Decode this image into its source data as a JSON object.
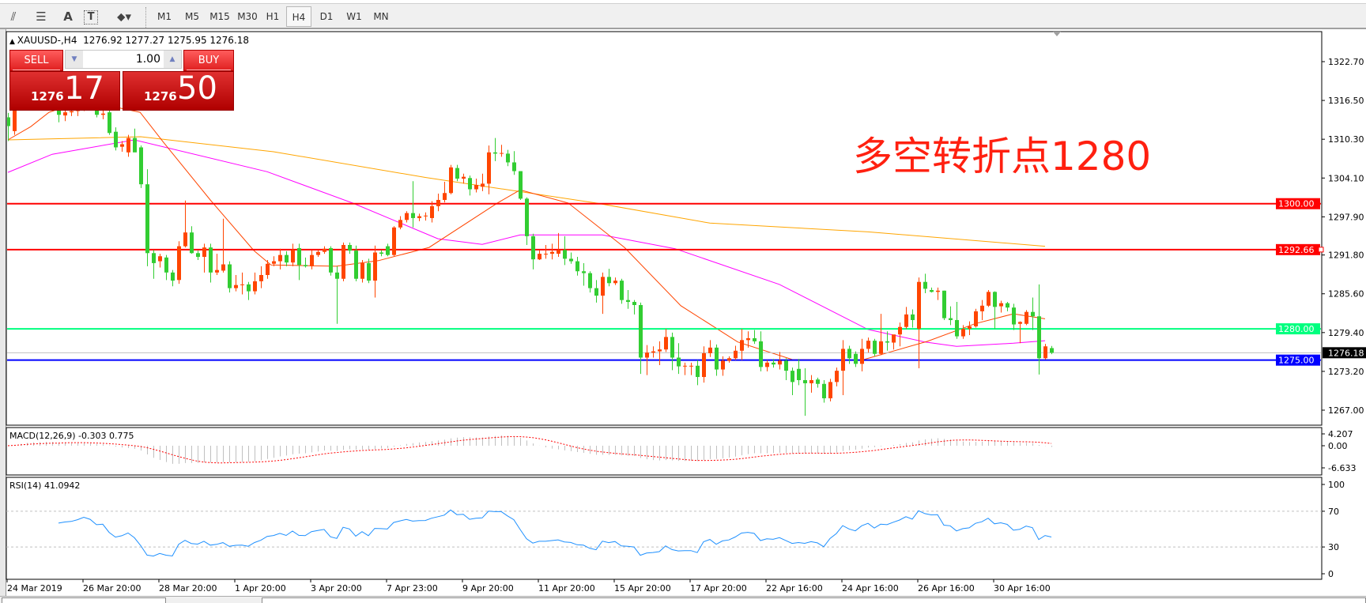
{
  "toolbar": {
    "tools": [
      {
        "icon": "fibonacci-fan-icon"
      },
      {
        "icon": "fibonacci-lines-icon"
      },
      {
        "icon": "text-icon",
        "label": "A"
      },
      {
        "icon": "text-label-icon",
        "label": "T"
      },
      {
        "icon": "arrows-dropdown-icon"
      }
    ],
    "timeframes": [
      "M1",
      "M5",
      "M15",
      "M30",
      "H1",
      "H4",
      "D1",
      "W1",
      "MN"
    ],
    "active_timeframe": "H4"
  },
  "header": {
    "symbol": "XAUUSD-,H4",
    "ohlc": "1276.92 1277.27 1275.95 1276.18"
  },
  "trade_panel": {
    "sell_label": "SELL",
    "buy_label": "BUY",
    "lots": "1.00",
    "sell_prefix": "1276",
    "sell_big": "17",
    "buy_prefix": "1276",
    "buy_big": "50"
  },
  "annotation": "多空转折点1280",
  "chart_data": {
    "type": "candlestick",
    "colors": {
      "up": "#ff4500",
      "down": "#32cd32",
      "ma_fast": "#ff4500",
      "ma_mid": "#ff00ff",
      "ma_slow": "#ffa500"
    },
    "price_ticks": [
      "1322.70",
      "1316.50",
      "1310.30",
      "1304.10",
      "1297.90",
      "1291.80",
      "1285.60",
      "1279.40",
      "1273.20",
      "1267.00"
    ],
    "time_labels": [
      "24 Mar 2019",
      "26 Mar 20:00",
      "28 Mar 20:00",
      "1 Apr 20:00",
      "3 Apr 20:00",
      "7 Apr 23:00",
      "9 Apr 20:00",
      "11 Apr 20:00",
      "15 Apr 20:00",
      "17 Apr 20:00",
      "22 Apr 16:00",
      "24 Apr 16:00",
      "26 Apr 16:00",
      "30 Apr 16:00"
    ],
    "bars_per_time_label": 12,
    "hlines": [
      {
        "price": 1300.0,
        "label": "1300.00",
        "color": "#ff0000"
      },
      {
        "price": 1292.66,
        "label": "1292.66",
        "color": "#ff0000"
      },
      {
        "price": 1280.0,
        "label": "1280.00",
        "color": "#00ff7f"
      },
      {
        "price": 1275.0,
        "label": "1275.00",
        "color": "#0000ff"
      }
    ],
    "bid": {
      "price": 1276.18,
      "label": "1276.18"
    },
    "candles_ohlc": [
      [
        1313.8,
        1314.5,
        1310,
        1312.4
      ],
      [
        1311.6,
        1316.5,
        1311,
        1315.8
      ],
      [
        1315.8,
        1318.5,
        1315,
        1317.5
      ],
      [
        1317.5,
        1320,
        1316.8,
        1319.2
      ],
      [
        1319.2,
        1321,
        1317,
        1318
      ],
      [
        1318,
        1319.5,
        1316,
        1316.8
      ],
      [
        1316.8,
        1318,
        1315.5,
        1317.6
      ],
      [
        1317.6,
        1318.5,
        1316.2,
        1316.5
      ],
      [
        1316.5,
        1317,
        1313,
        1314.2
      ],
      [
        1314.1,
        1315,
        1313.2,
        1314.6
      ],
      [
        1314.6,
        1315,
        1314,
        1314.8
      ],
      [
        1314.8,
        1316,
        1314,
        1315.5
      ],
      [
        1315.5,
        1317,
        1314.8,
        1316.6
      ],
      [
        1316.6,
        1317.5,
        1315.6,
        1316
      ],
      [
        1316,
        1316.3,
        1313.8,
        1314.2
      ],
      [
        1314.2,
        1315,
        1313.5,
        1314.4
      ],
      [
        1314.6,
        1315,
        1311,
        1311.3
      ],
      [
        1311.5,
        1312.2,
        1308.5,
        1309
      ],
      [
        1309.1,
        1310,
        1308.3,
        1309.5
      ],
      [
        1308.2,
        1311,
        1307.5,
        1310.5
      ],
      [
        1310.5,
        1312,
        1309,
        1308.2
      ],
      [
        1309,
        1309.3,
        1302.5,
        1303.1
      ],
      [
        1303.1,
        1305.5,
        1290,
        1292.1
      ],
      [
        1292.1,
        1292.6,
        1288,
        1290.5
      ],
      [
        1290.8,
        1292,
        1289.8,
        1291.6
      ],
      [
        1291.4,
        1291.8,
        1287.8,
        1289
      ],
      [
        1289,
        1289.4,
        1286.8,
        1287.7
      ],
      [
        1287.8,
        1294,
        1287.2,
        1293.2
      ],
      [
        1293.2,
        1300.5,
        1293,
        1295.4
      ],
      [
        1295.4,
        1296.4,
        1292,
        1292.1
      ],
      [
        1292.1,
        1292.5,
        1291,
        1291.5
      ],
      [
        1291.5,
        1293.6,
        1289,
        1293
      ],
      [
        1293,
        1293.6,
        1287.4,
        1289
      ],
      [
        1289,
        1292,
        1288.6,
        1289.4
      ],
      [
        1289.3,
        1297.6,
        1289,
        1290.3
      ],
      [
        1290.3,
        1290.8,
        1285.8,
        1286.5
      ],
      [
        1286.5,
        1288.6,
        1286,
        1287
      ],
      [
        1287,
        1289,
        1285.5,
        1287.1
      ],
      [
        1287.1,
        1287.5,
        1284.6,
        1286
      ],
      [
        1286,
        1289,
        1285.5,
        1287.6
      ],
      [
        1287.6,
        1290,
        1286.5,
        1288.6
      ],
      [
        1288.6,
        1291,
        1288,
        1290.4
      ],
      [
        1290.4,
        1291.6,
        1290,
        1290.8
      ],
      [
        1290.8,
        1292.8,
        1289.5,
        1291.8
      ],
      [
        1291.8,
        1292.4,
        1290,
        1290.6
      ],
      [
        1290.6,
        1293.6,
        1290,
        1292.6
      ],
      [
        1292.9,
        1293.6,
        1287.8,
        1290.2
      ],
      [
        1290.2,
        1291.4,
        1289.8,
        1290
      ],
      [
        1290,
        1292.6,
        1289.5,
        1291.8
      ],
      [
        1291.8,
        1292.6,
        1291.5,
        1292.3
      ],
      [
        1292.3,
        1293.2,
        1292,
        1292.8
      ],
      [
        1292.9,
        1293.2,
        1288.5,
        1289
      ],
      [
        1289,
        1290,
        1280.8,
        1288
      ],
      [
        1288,
        1293.8,
        1287.6,
        1293.4
      ],
      [
        1293.4,
        1293.8,
        1292,
        1292.5
      ],
      [
        1292.5,
        1293.3,
        1287.6,
        1288
      ],
      [
        1288,
        1291,
        1287.4,
        1290.5
      ],
      [
        1290.5,
        1291.2,
        1287.3,
        1287.7
      ],
      [
        1287.7,
        1293.3,
        1285,
        1292.2
      ],
      [
        1292.2,
        1292.6,
        1291.6,
        1292
      ],
      [
        1293.2,
        1293.6,
        1291.6,
        1291.8
      ],
      [
        1291.8,
        1296.4,
        1291.6,
        1296.2
      ],
      [
        1296.2,
        1298,
        1295.9,
        1297.4
      ],
      [
        1297.4,
        1298.8,
        1297,
        1298.5
      ],
      [
        1298.5,
        1303.6,
        1296.2,
        1297.7
      ],
      [
        1297.7,
        1298.4,
        1297.2,
        1298
      ],
      [
        1298,
        1298.6,
        1297.3,
        1298.1
      ],
      [
        1297.7,
        1300.4,
        1297,
        1299.6
      ],
      [
        1299.6,
        1301.6,
        1298.8,
        1300.6
      ],
      [
        1300.6,
        1303.5,
        1300.2,
        1301.7
      ],
      [
        1301.7,
        1306.2,
        1301.5,
        1305.8
      ],
      [
        1305.7,
        1306.2,
        1303.6,
        1304
      ],
      [
        1304,
        1304.8,
        1303.2,
        1304.3
      ],
      [
        1304.1,
        1304.5,
        1301.3,
        1302.3
      ],
      [
        1302.3,
        1304,
        1301.8,
        1303
      ],
      [
        1302.7,
        1304.8,
        1302,
        1303.2
      ],
      [
        1303.2,
        1309.3,
        1301.5,
        1308.2
      ],
      [
        1308.2,
        1310.5,
        1306.8,
        1308
      ],
      [
        1308,
        1309.4,
        1307.5,
        1308.1
      ],
      [
        1308,
        1308.6,
        1306,
        1306.6
      ],
      [
        1306.6,
        1308.4,
        1304.6,
        1305.2
      ],
      [
        1305.2,
        1305.2,
        1300.6,
        1300.8
      ],
      [
        1300.8,
        1301,
        1293.4,
        1294.8
      ],
      [
        1294.8,
        1295.2,
        1289.5,
        1291.1
      ],
      [
        1291.1,
        1292.6,
        1291,
        1292
      ],
      [
        1292,
        1293.4,
        1291.2,
        1292
      ],
      [
        1292,
        1293.6,
        1291.1,
        1292.3
      ],
      [
        1292,
        1295.3,
        1291.5,
        1292.6
      ],
      [
        1292.6,
        1294.8,
        1290.2,
        1291.2
      ],
      [
        1291.2,
        1292.2,
        1290.4,
        1290.8
      ],
      [
        1290.8,
        1291.5,
        1288.5,
        1289.2
      ],
      [
        1289.2,
        1290.5,
        1286.9,
        1288.9
      ],
      [
        1288.9,
        1289.2,
        1285.8,
        1286.5
      ],
      [
        1286.5,
        1287.8,
        1284.2,
        1285.3
      ],
      [
        1285.3,
        1289,
        1282.4,
        1288.3
      ],
      [
        1288.3,
        1289.6,
        1286.8,
        1287.3
      ],
      [
        1287.3,
        1288.2,
        1287,
        1287.7
      ],
      [
        1287.7,
        1288,
        1284,
        1284.6
      ],
      [
        1284.6,
        1286.2,
        1283.2,
        1284.3
      ],
      [
        1284.3,
        1284.6,
        1282.3,
        1283.8
      ],
      [
        1283.8,
        1284.2,
        1272.8,
        1275.4
      ],
      [
        1275.4,
        1277.4,
        1272.6,
        1276.2
      ],
      [
        1276.2,
        1277.2,
        1275.4,
        1276.4
      ],
      [
        1276.4,
        1278,
        1274.2,
        1276.7
      ],
      [
        1276.7,
        1280,
        1276.3,
        1278.7
      ],
      [
        1278.7,
        1279.4,
        1273.4,
        1275.4
      ],
      [
        1275.4,
        1277.7,
        1272.8,
        1274
      ],
      [
        1274,
        1274.6,
        1272.6,
        1274.1
      ],
      [
        1274,
        1274.6,
        1272.6,
        1274.1
      ],
      [
        1274.1,
        1275,
        1271,
        1272.3
      ],
      [
        1272.3,
        1277.2,
        1271.4,
        1276.1
      ],
      [
        1276.1,
        1278.2,
        1275.5,
        1277
      ],
      [
        1277,
        1277.5,
        1272.5,
        1273.5
      ],
      [
        1273.5,
        1275.6,
        1272.5,
        1274.9
      ],
      [
        1274.9,
        1275.6,
        1274.6,
        1275.3
      ],
      [
        1275.3,
        1277.3,
        1275,
        1276.5
      ],
      [
        1276.5,
        1280,
        1275,
        1278.2
      ],
      [
        1278.2,
        1279.6,
        1277,
        1278.5
      ],
      [
        1278.5,
        1279.8,
        1277.6,
        1278
      ],
      [
        1278,
        1279.6,
        1273.2,
        1273.9
      ],
      [
        1273.9,
        1275,
        1273.2,
        1274.6
      ],
      [
        1274.6,
        1275.2,
        1273.8,
        1274.3
      ],
      [
        1274.3,
        1276.3,
        1273.5,
        1274.9
      ],
      [
        1274.9,
        1275.3,
        1271.8,
        1273.3
      ],
      [
        1273.3,
        1273.8,
        1269.4,
        1271.5
      ],
      [
        1273.6,
        1275.2,
        1271,
        1271.8
      ],
      [
        1271.8,
        1273.7,
        1266.1,
        1271.3
      ],
      [
        1271.3,
        1272.6,
        1269.8,
        1271.8
      ],
      [
        1271.9,
        1272.2,
        1270.6,
        1271.2
      ],
      [
        1271.2,
        1271.8,
        1268.2,
        1268.9
      ],
      [
        1268.9,
        1272,
        1268.4,
        1271.5
      ],
      [
        1271.5,
        1273.8,
        1270.8,
        1273.3
      ],
      [
        1273.3,
        1278.2,
        1269.4,
        1276.8
      ],
      [
        1276.8,
        1277.3,
        1274.4,
        1275.3
      ],
      [
        1276,
        1276.4,
        1273.9,
        1274.4
      ],
      [
        1274.4,
        1278.4,
        1273.2,
        1276.8
      ],
      [
        1276.8,
        1278.6,
        1276.2,
        1278.1
      ],
      [
        1278.1,
        1278.4,
        1275.6,
        1276
      ],
      [
        1276,
        1282.4,
        1275.8,
        1278
      ],
      [
        1278,
        1279.6,
        1276.5,
        1277.8
      ],
      [
        1277.8,
        1279,
        1276.7,
        1279.1
      ],
      [
        1279.1,
        1281,
        1277.2,
        1280.3
      ],
      [
        1280.3,
        1283.5,
        1280,
        1282.3
      ],
      [
        1282.3,
        1283.1,
        1280.2,
        1281.4
      ],
      [
        1280,
        1288.2,
        1273.7,
        1287.5
      ],
      [
        1287.5,
        1288.8,
        1285.7,
        1286.4
      ],
      [
        1286.2,
        1286.6,
        1285.8,
        1285.9
      ],
      [
        1285.9,
        1286.6,
        1284.6,
        1286.1
      ],
      [
        1286.1,
        1286.1,
        1281.4,
        1281.7
      ],
      [
        1281.7,
        1283.6,
        1280.6,
        1281.4
      ],
      [
        1281.4,
        1284.3,
        1278.4,
        1278.8
      ],
      [
        1278.8,
        1280.6,
        1278.4,
        1280
      ],
      [
        1280,
        1281.2,
        1279,
        1280.4
      ],
      [
        1280.4,
        1283.2,
        1280.2,
        1282.8
      ],
      [
        1282.8,
        1284.6,
        1281.4,
        1283.7
      ],
      [
        1283.7,
        1286.2,
        1283.5,
        1285.9
      ],
      [
        1285.9,
        1286,
        1280,
        1283.5
      ],
      [
        1283.6,
        1284.5,
        1282.6,
        1284.1
      ],
      [
        1284.1,
        1284.3,
        1282.8,
        1283.4
      ],
      [
        1283.4,
        1284,
        1279.8,
        1280.7
      ],
      [
        1280.8,
        1281.2,
        1277.7,
        1281.1
      ],
      [
        1280.8,
        1283,
        1280.6,
        1282.7
      ],
      [
        1282.7,
        1285,
        1279.8,
        1282
      ],
      [
        1282,
        1287.1,
        1272.7,
        1275.3
      ],
      [
        1275.3,
        1277.6,
        1275.1,
        1277.2
      ],
      [
        1276.92,
        1277.27,
        1275.95,
        1276.18
      ]
    ],
    "moving_averages": [
      {
        "key": "ma_fast",
        "points": [
          [
            0,
            1310.2
          ],
          [
            3.6,
            1312.3
          ],
          [
            6.5,
            1314.6
          ],
          [
            12,
            1316.5
          ],
          [
            20.9,
            1314.6
          ],
          [
            24.6,
            1309.8
          ],
          [
            32,
            1300.6
          ],
          [
            38.9,
            1292.5
          ],
          [
            41.6,
            1290.2
          ],
          [
            51.9,
            1290
          ],
          [
            58.6,
            1290.9
          ],
          [
            66.6,
            1293
          ],
          [
            77.4,
            1300.1
          ],
          [
            81,
            1302.2
          ],
          [
            88.6,
            1300.1
          ],
          [
            97.5,
            1293
          ],
          [
            106.4,
            1283.7
          ],
          [
            115.4,
            1277.9
          ],
          [
            124,
            1275.1
          ],
          [
            135,
            1275
          ],
          [
            145.4,
            1278
          ],
          [
            152.9,
            1280.8
          ],
          [
            159,
            1282.4
          ],
          [
            164,
            1281.6
          ]
        ]
      },
      {
        "key": "ma_mid",
        "points": [
          [
            0,
            1305
          ],
          [
            7,
            1307.9
          ],
          [
            20,
            1310.2
          ],
          [
            41,
            1305.1
          ],
          [
            54.5,
            1300.1
          ],
          [
            68,
            1294.4
          ],
          [
            75,
            1293.5
          ],
          [
            81,
            1295
          ],
          [
            94,
            1295
          ],
          [
            105.5,
            1292.8
          ],
          [
            122,
            1287.1
          ],
          [
            136,
            1279.9
          ],
          [
            145,
            1277.9
          ],
          [
            150,
            1277.2
          ],
          [
            159,
            1277.7
          ],
          [
            164,
            1278.1
          ]
        ]
      },
      {
        "key": "ma_slow",
        "points": [
          [
            0,
            1310.2
          ],
          [
            21,
            1310.7
          ],
          [
            42,
            1308.3
          ],
          [
            66,
            1304.2
          ],
          [
            93,
            1300.1
          ],
          [
            111,
            1296.9
          ],
          [
            136,
            1295.5
          ],
          [
            164,
            1293.2
          ]
        ]
      }
    ],
    "macd": {
      "label": "MACD(12,26,9) -0.303 0.775",
      "ticks": [
        "4.207",
        "0.00",
        "-6.633"
      ],
      "histogram_color": "#c0c0c0",
      "signal_color": "#ff0000"
    },
    "rsi": {
      "label": "RSI(14) 41.0942",
      "ticks": [
        "100",
        "70",
        "30",
        "0"
      ],
      "levels": [
        70,
        30
      ],
      "color": "#1e90ff"
    }
  }
}
